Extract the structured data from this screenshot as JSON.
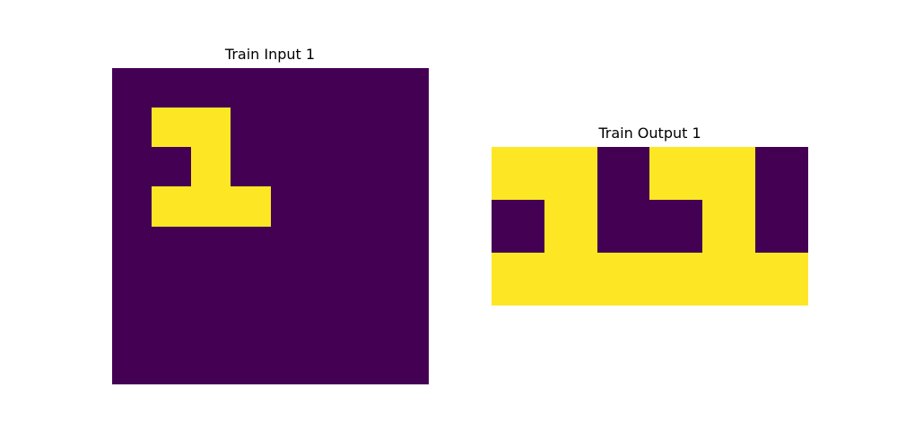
{
  "colors": {
    "background_value": "#440154",
    "foreground_value": "#fde725"
  },
  "input": {
    "title": "Train Input 1",
    "grid": [
      [
        0,
        0,
        0,
        0,
        0,
        0,
        0,
        0
      ],
      [
        0,
        1,
        1,
        0,
        0,
        0,
        0,
        0
      ],
      [
        0,
        0,
        1,
        0,
        0,
        0,
        0,
        0
      ],
      [
        0,
        1,
        1,
        1,
        0,
        0,
        0,
        0
      ],
      [
        0,
        0,
        0,
        0,
        0,
        0,
        0,
        0
      ],
      [
        0,
        0,
        0,
        0,
        0,
        0,
        0,
        0
      ],
      [
        0,
        0,
        0,
        0,
        0,
        0,
        0,
        0
      ],
      [
        0,
        0,
        0,
        0,
        0,
        0,
        0,
        0
      ]
    ]
  },
  "output": {
    "title": "Train Output 1",
    "grid": [
      [
        1,
        1,
        0,
        1,
        1,
        0
      ],
      [
        0,
        1,
        0,
        0,
        1,
        0
      ],
      [
        1,
        1,
        1,
        1,
        1,
        1
      ]
    ]
  }
}
